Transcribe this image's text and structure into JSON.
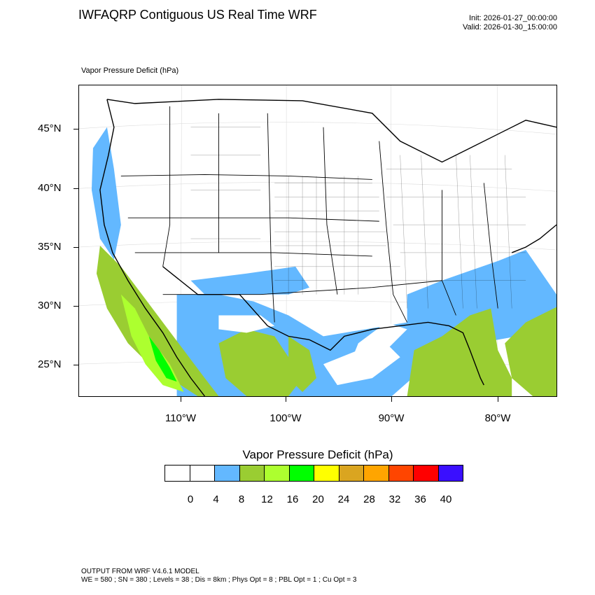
{
  "header": {
    "title": "IWFAQRP Contiguous US Real Time WRF",
    "init": "Init: 2026-01-27_00:00:00",
    "valid": "Valid: 2026-01-30_15:00:00"
  },
  "field": {
    "label": "Vapor Pressure Deficit   (hPa)"
  },
  "axes": {
    "lat_labels": [
      "45°N",
      "40°N",
      "35°N",
      "30°N",
      "25°N"
    ],
    "lon_labels": [
      "110°W",
      "100°W",
      "90°W",
      "80°W"
    ]
  },
  "legend": {
    "title": "Vapor Pressure Deficit  (hPa)",
    "labels": [
      "0",
      "4",
      "8",
      "12",
      "16",
      "20",
      "24",
      "28",
      "32",
      "36",
      "40"
    ],
    "colors": [
      "#ffffff",
      "#ffffff",
      "#63b8ff",
      "#9acd32",
      "#adff2f",
      "#00ff00",
      "#ffff00",
      "#daa520",
      "#ffa500",
      "#ff4500",
      "#ff0000",
      "#3a0fff"
    ]
  },
  "footer": {
    "line1": "OUTPUT FROM WRF V4.6.1 MODEL",
    "line2": "WE = 580 ; SN = 380 ; Levels = 38 ; Dis = 8km ; Phys Opt = 8 ; PBL Opt = 1 ; Cu Opt = 3"
  }
}
